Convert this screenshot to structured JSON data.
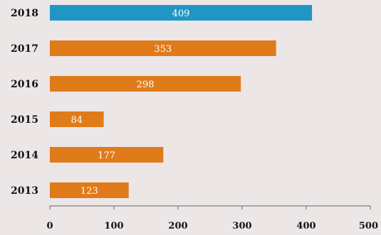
{
  "chart_data": {
    "type": "bar",
    "orientation": "horizontal",
    "categories": [
      "2018",
      "2017",
      "2016",
      "2015",
      "2014",
      "2013"
    ],
    "values": [
      409,
      353,
      298,
      84,
      177,
      123
    ],
    "data_labels": [
      "409",
      "353",
      "298",
      "84",
      "177",
      "123"
    ],
    "highlight_category": "2018",
    "colors": {
      "default": "#e07b1a",
      "highlight": "#2196c4"
    },
    "xlim": [
      0,
      500
    ],
    "xticks": [
      0,
      100,
      200,
      300,
      400,
      500
    ],
    "xtick_labels": [
      "0",
      "100",
      "200",
      "300",
      "400",
      "500"
    ],
    "grid": false,
    "title": "",
    "xlabel": "",
    "ylabel": ""
  }
}
